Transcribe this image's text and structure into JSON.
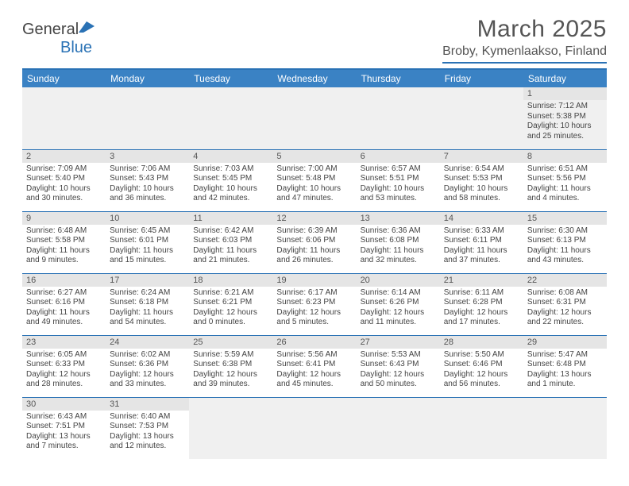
{
  "brand": {
    "word1": "General",
    "word2": "Blue",
    "logo_color": "#2a72b5"
  },
  "title": "March 2025",
  "location": "Broby, Kymenlaakso, Finland",
  "colors": {
    "header_bg": "#3a82c4",
    "rule": "#2a72b5",
    "daynum_bg": "#e5e5e5",
    "empty_bg": "#f0f0f0"
  },
  "weekdays": [
    "Sunday",
    "Monday",
    "Tuesday",
    "Wednesday",
    "Thursday",
    "Friday",
    "Saturday"
  ],
  "grid": [
    [
      null,
      null,
      null,
      null,
      null,
      null,
      {
        "n": "1",
        "sr": "Sunrise: 7:12 AM",
        "ss": "Sunset: 5:38 PM",
        "dl": "Daylight: 10 hours and 25 minutes."
      }
    ],
    [
      {
        "n": "2",
        "sr": "Sunrise: 7:09 AM",
        "ss": "Sunset: 5:40 PM",
        "dl": "Daylight: 10 hours and 30 minutes."
      },
      {
        "n": "3",
        "sr": "Sunrise: 7:06 AM",
        "ss": "Sunset: 5:43 PM",
        "dl": "Daylight: 10 hours and 36 minutes."
      },
      {
        "n": "4",
        "sr": "Sunrise: 7:03 AM",
        "ss": "Sunset: 5:45 PM",
        "dl": "Daylight: 10 hours and 42 minutes."
      },
      {
        "n": "5",
        "sr": "Sunrise: 7:00 AM",
        "ss": "Sunset: 5:48 PM",
        "dl": "Daylight: 10 hours and 47 minutes."
      },
      {
        "n": "6",
        "sr": "Sunrise: 6:57 AM",
        "ss": "Sunset: 5:51 PM",
        "dl": "Daylight: 10 hours and 53 minutes."
      },
      {
        "n": "7",
        "sr": "Sunrise: 6:54 AM",
        "ss": "Sunset: 5:53 PM",
        "dl": "Daylight: 10 hours and 58 minutes."
      },
      {
        "n": "8",
        "sr": "Sunrise: 6:51 AM",
        "ss": "Sunset: 5:56 PM",
        "dl": "Daylight: 11 hours and 4 minutes."
      }
    ],
    [
      {
        "n": "9",
        "sr": "Sunrise: 6:48 AM",
        "ss": "Sunset: 5:58 PM",
        "dl": "Daylight: 11 hours and 9 minutes."
      },
      {
        "n": "10",
        "sr": "Sunrise: 6:45 AM",
        "ss": "Sunset: 6:01 PM",
        "dl": "Daylight: 11 hours and 15 minutes."
      },
      {
        "n": "11",
        "sr": "Sunrise: 6:42 AM",
        "ss": "Sunset: 6:03 PM",
        "dl": "Daylight: 11 hours and 21 minutes."
      },
      {
        "n": "12",
        "sr": "Sunrise: 6:39 AM",
        "ss": "Sunset: 6:06 PM",
        "dl": "Daylight: 11 hours and 26 minutes."
      },
      {
        "n": "13",
        "sr": "Sunrise: 6:36 AM",
        "ss": "Sunset: 6:08 PM",
        "dl": "Daylight: 11 hours and 32 minutes."
      },
      {
        "n": "14",
        "sr": "Sunrise: 6:33 AM",
        "ss": "Sunset: 6:11 PM",
        "dl": "Daylight: 11 hours and 37 minutes."
      },
      {
        "n": "15",
        "sr": "Sunrise: 6:30 AM",
        "ss": "Sunset: 6:13 PM",
        "dl": "Daylight: 11 hours and 43 minutes."
      }
    ],
    [
      {
        "n": "16",
        "sr": "Sunrise: 6:27 AM",
        "ss": "Sunset: 6:16 PM",
        "dl": "Daylight: 11 hours and 49 minutes."
      },
      {
        "n": "17",
        "sr": "Sunrise: 6:24 AM",
        "ss": "Sunset: 6:18 PM",
        "dl": "Daylight: 11 hours and 54 minutes."
      },
      {
        "n": "18",
        "sr": "Sunrise: 6:21 AM",
        "ss": "Sunset: 6:21 PM",
        "dl": "Daylight: 12 hours and 0 minutes."
      },
      {
        "n": "19",
        "sr": "Sunrise: 6:17 AM",
        "ss": "Sunset: 6:23 PM",
        "dl": "Daylight: 12 hours and 5 minutes."
      },
      {
        "n": "20",
        "sr": "Sunrise: 6:14 AM",
        "ss": "Sunset: 6:26 PM",
        "dl": "Daylight: 12 hours and 11 minutes."
      },
      {
        "n": "21",
        "sr": "Sunrise: 6:11 AM",
        "ss": "Sunset: 6:28 PM",
        "dl": "Daylight: 12 hours and 17 minutes."
      },
      {
        "n": "22",
        "sr": "Sunrise: 6:08 AM",
        "ss": "Sunset: 6:31 PM",
        "dl": "Daylight: 12 hours and 22 minutes."
      }
    ],
    [
      {
        "n": "23",
        "sr": "Sunrise: 6:05 AM",
        "ss": "Sunset: 6:33 PM",
        "dl": "Daylight: 12 hours and 28 minutes."
      },
      {
        "n": "24",
        "sr": "Sunrise: 6:02 AM",
        "ss": "Sunset: 6:36 PM",
        "dl": "Daylight: 12 hours and 33 minutes."
      },
      {
        "n": "25",
        "sr": "Sunrise: 5:59 AM",
        "ss": "Sunset: 6:38 PM",
        "dl": "Daylight: 12 hours and 39 minutes."
      },
      {
        "n": "26",
        "sr": "Sunrise: 5:56 AM",
        "ss": "Sunset: 6:41 PM",
        "dl": "Daylight: 12 hours and 45 minutes."
      },
      {
        "n": "27",
        "sr": "Sunrise: 5:53 AM",
        "ss": "Sunset: 6:43 PM",
        "dl": "Daylight: 12 hours and 50 minutes."
      },
      {
        "n": "28",
        "sr": "Sunrise: 5:50 AM",
        "ss": "Sunset: 6:46 PM",
        "dl": "Daylight: 12 hours and 56 minutes."
      },
      {
        "n": "29",
        "sr": "Sunrise: 5:47 AM",
        "ss": "Sunset: 6:48 PM",
        "dl": "Daylight: 13 hours and 1 minute."
      }
    ],
    [
      {
        "n": "30",
        "sr": "Sunrise: 6:43 AM",
        "ss": "Sunset: 7:51 PM",
        "dl": "Daylight: 13 hours and 7 minutes."
      },
      {
        "n": "31",
        "sr": "Sunrise: 6:40 AM",
        "ss": "Sunset: 7:53 PM",
        "dl": "Daylight: 13 hours and 12 minutes."
      },
      null,
      null,
      null,
      null,
      null
    ]
  ]
}
